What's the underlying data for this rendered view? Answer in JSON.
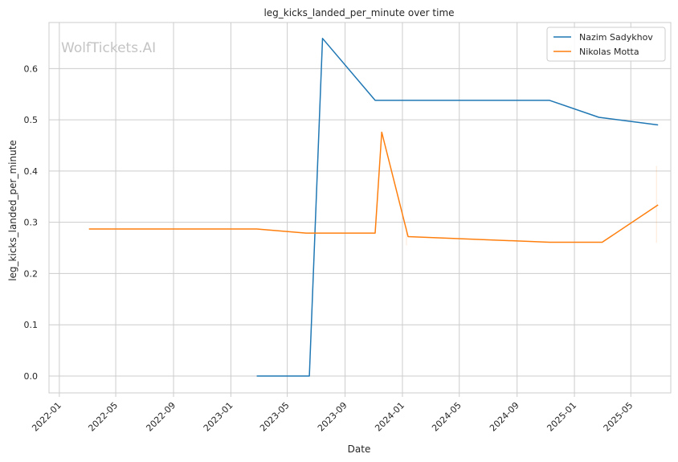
{
  "chart_data": {
    "type": "line",
    "title": "leg_kicks_landed_per_minute over time",
    "xlabel": "Date",
    "ylabel": "leg_kicks_landed_per_minute",
    "watermark": "WolfTickets.AI",
    "x_ticks": [
      "2022-01",
      "2022-05",
      "2022-09",
      "2023-01",
      "2023-05",
      "2023-09",
      "2024-01",
      "2024-05",
      "2024-09",
      "2025-01",
      "2025-05"
    ],
    "xlim": [
      "2021-12-10",
      "2025-07-25"
    ],
    "y_ticks": [
      "0.0",
      "0.1",
      "0.2",
      "0.3",
      "0.4",
      "0.5",
      "0.6"
    ],
    "ylim": [
      -0.033,
      0.69
    ],
    "grid": true,
    "legend_position": "top-right",
    "series": [
      {
        "name": "Nazim Sadykhov",
        "color": "#1f77b4",
        "x": [
          "2023-02-25",
          "2023-06-17",
          "2023-07-15",
          "2023-11-04",
          "2024-11-09",
          "2025-02-22",
          "2025-06-28"
        ],
        "y": [
          0.0,
          0.0,
          0.659,
          0.538,
          0.538,
          0.505,
          0.49
        ]
      },
      {
        "name": "Nikolas Motta",
        "color": "#ff7f0e",
        "x": [
          "2022-03-05",
          "2023-02-25",
          "2023-06-10",
          "2023-11-04",
          "2023-11-18",
          "2024-01-13",
          "2024-11-09",
          "2025-03-01",
          "2025-06-28"
        ],
        "y": [
          0.287,
          0.287,
          0.279,
          0.279,
          0.476,
          0.272,
          0.261,
          0.261,
          0.334
        ]
      }
    ]
  }
}
